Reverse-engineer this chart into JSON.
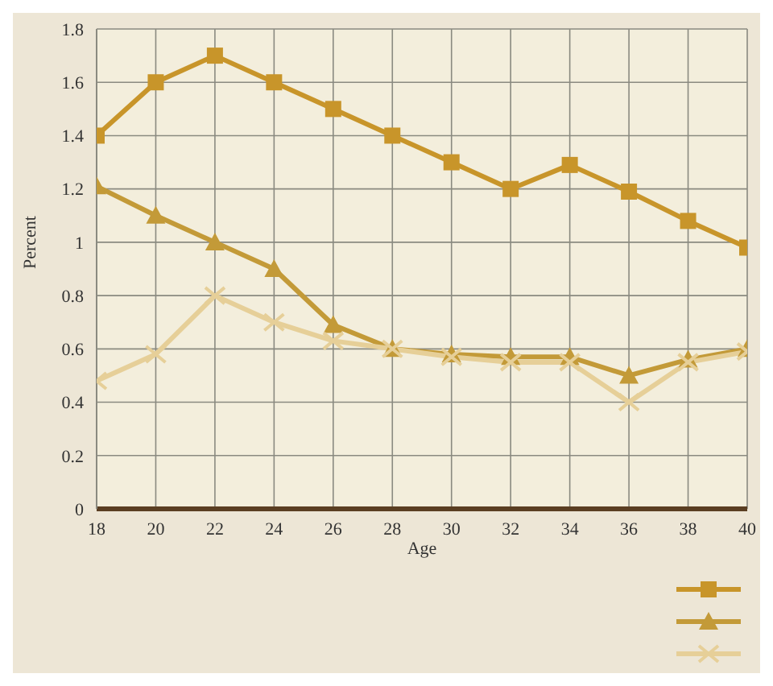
{
  "chart_data": {
    "type": "line",
    "xlabel": "Age",
    "ylabel": "Percent",
    "x": [
      18,
      20,
      22,
      24,
      26,
      28,
      30,
      32,
      34,
      36,
      38,
      40
    ],
    "series": [
      {
        "color": "#c8952a",
        "marker": "square",
        "values": [
          1.4,
          1.6,
          1.7,
          1.6,
          1.5,
          1.4,
          1.3,
          1.2,
          1.29,
          1.19,
          1.08,
          0.98
        ]
      },
      {
        "color": "#c39a38",
        "marker": "triangle",
        "values": [
          1.21,
          1.1,
          1.0,
          0.9,
          0.69,
          0.6,
          0.58,
          0.57,
          0.57,
          0.5,
          0.56,
          0.6
        ]
      },
      {
        "color": "#e6cf98",
        "marker": "cross",
        "values": [
          0.48,
          0.58,
          0.8,
          0.7,
          0.63,
          0.6,
          0.57,
          0.55,
          0.55,
          0.4,
          0.55,
          0.59
        ]
      }
    ],
    "xlim": [
      18,
      40
    ],
    "xticks": [
      18,
      20,
      22,
      24,
      26,
      28,
      30,
      32,
      34,
      36,
      38,
      40
    ],
    "ylim": [
      0,
      1.8
    ],
    "yticks": [
      0,
      0.2,
      0.4,
      0.6,
      0.8,
      1,
      1.2,
      1.4,
      1.6,
      1.8
    ],
    "grid": true
  }
}
